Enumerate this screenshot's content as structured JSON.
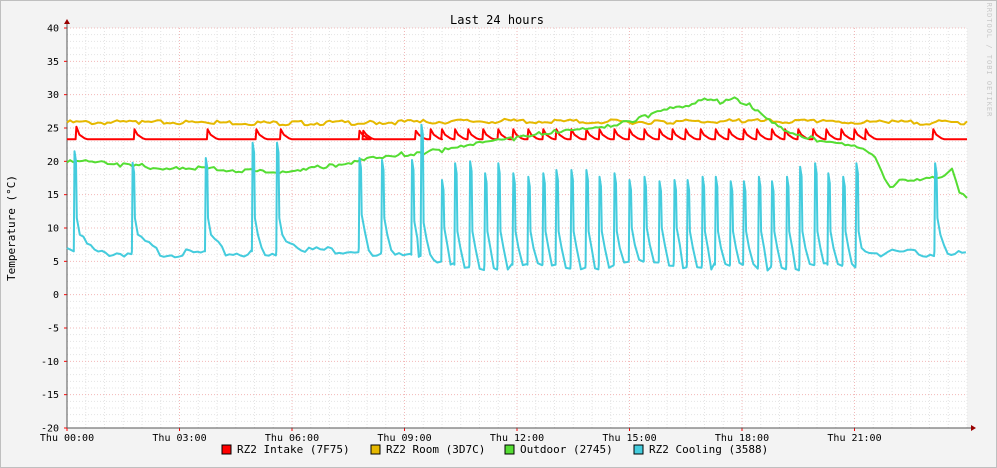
{
  "chart_data": {
    "type": "line",
    "title": "Last 24 hours",
    "ylabel": "Temperature (°C)",
    "watermark": "RRDTOOL / TOBI OETIKER",
    "ylim": [
      -20,
      40
    ],
    "y_ticks": [
      40,
      35,
      30,
      25,
      20,
      15,
      10,
      5,
      0,
      -5,
      -10,
      -15,
      -20
    ],
    "xlim": [
      0,
      24
    ],
    "x_ticks": [
      {
        "hour": 0,
        "label": "Thu 00:00"
      },
      {
        "hour": 3,
        "label": "Thu 03:00"
      },
      {
        "hour": 6,
        "label": "Thu 06:00"
      },
      {
        "hour": 9,
        "label": "Thu 09:00"
      },
      {
        "hour": 12,
        "label": "Thu 12:00"
      },
      {
        "hour": 15,
        "label": "Thu 15:00"
      },
      {
        "hour": 18,
        "label": "Thu 18:00"
      },
      {
        "hour": 21,
        "label": "Thu 21:00"
      }
    ],
    "grid": true,
    "legend_position": "bottom",
    "series": [
      {
        "name": "RZ2 Intake (7F75)",
        "color": "#ff0000",
        "baseline": 23.3,
        "spikes": [
          {
            "t": 0.25,
            "peak": 25.2
          },
          {
            "t": 1.8,
            "peak": 24.8
          },
          {
            "t": 3.75,
            "peak": 24.8
          },
          {
            "t": 5.05,
            "peak": 24.8
          },
          {
            "t": 5.7,
            "peak": 24.8
          },
          {
            "t": 7.8,
            "peak": 24.6
          },
          {
            "t": 7.9,
            "peak": 24.6
          },
          {
            "t": 9.3,
            "peak": 24.6
          },
          {
            "t": 9.7,
            "peak": 24.8
          },
          {
            "t": 10.0,
            "peak": 24.8
          },
          {
            "t": 10.35,
            "peak": 24.8
          },
          {
            "t": 10.7,
            "peak": 24.8
          },
          {
            "t": 11.1,
            "peak": 24.8
          },
          {
            "t": 11.5,
            "peak": 24.8
          },
          {
            "t": 11.9,
            "peak": 24.8
          },
          {
            "t": 12.3,
            "peak": 24.8
          },
          {
            "t": 12.7,
            "peak": 24.8
          },
          {
            "t": 13.05,
            "peak": 24.8
          },
          {
            "t": 13.45,
            "peak": 24.8
          },
          {
            "t": 13.85,
            "peak": 24.8
          },
          {
            "t": 14.2,
            "peak": 24.8
          },
          {
            "t": 14.6,
            "peak": 24.8
          },
          {
            "t": 15.0,
            "peak": 24.8
          },
          {
            "t": 15.4,
            "peak": 24.8
          },
          {
            "t": 15.8,
            "peak": 24.8
          },
          {
            "t": 16.15,
            "peak": 24.8
          },
          {
            "t": 16.5,
            "peak": 24.8
          },
          {
            "t": 16.9,
            "peak": 24.8
          },
          {
            "t": 17.3,
            "peak": 24.8
          },
          {
            "t": 17.65,
            "peak": 24.8
          },
          {
            "t": 18.05,
            "peak": 24.8
          },
          {
            "t": 18.4,
            "peak": 24.8
          },
          {
            "t": 18.8,
            "peak": 24.8
          },
          {
            "t": 19.15,
            "peak": 24.8
          },
          {
            "t": 19.5,
            "peak": 24.8
          },
          {
            "t": 19.9,
            "peak": 24.8
          },
          {
            "t": 20.25,
            "peak": 24.8
          },
          {
            "t": 20.65,
            "peak": 24.8
          },
          {
            "t": 21.0,
            "peak": 24.8
          },
          {
            "t": 21.3,
            "peak": 24.8
          },
          {
            "t": 23.1,
            "peak": 24.8
          }
        ]
      },
      {
        "name": "RZ2 Room (3D7C)",
        "color": "#e6b800",
        "points": [
          [
            0,
            26.0
          ],
          [
            2,
            26.0
          ],
          [
            4,
            26.0
          ],
          [
            6,
            25.9
          ],
          [
            8,
            26.0
          ],
          [
            9.5,
            26.1
          ],
          [
            11,
            26.2
          ],
          [
            12.5,
            26.2
          ],
          [
            14,
            26.1
          ],
          [
            16,
            26.1
          ],
          [
            18,
            26.2
          ],
          [
            20,
            26.1
          ],
          [
            22,
            26.0
          ],
          [
            24,
            26.0
          ]
        ]
      },
      {
        "name": "Outdoor (2745)",
        "color": "#55dd33",
        "points": [
          [
            0,
            20.0
          ],
          [
            0.5,
            20.1
          ],
          [
            1.0,
            19.8
          ],
          [
            1.5,
            19.6
          ],
          [
            1.75,
            19.4
          ],
          [
            2.0,
            19.5
          ],
          [
            2.3,
            19.2
          ],
          [
            3.0,
            19.3
          ],
          [
            4.0,
            19.0
          ],
          [
            4.5,
            18.8
          ],
          [
            5.0,
            18.9
          ],
          [
            5.3,
            18.6
          ],
          [
            5.5,
            18.2
          ],
          [
            6.0,
            18.5
          ],
          [
            6.3,
            18.8
          ],
          [
            6.6,
            19.2
          ],
          [
            7.0,
            19.4
          ],
          [
            7.5,
            20.0
          ],
          [
            8.0,
            20.8
          ],
          [
            8.5,
            21.0
          ],
          [
            9.0,
            21.3
          ],
          [
            9.5,
            21.5
          ],
          [
            10.0,
            21.8
          ],
          [
            10.5,
            22.2
          ],
          [
            11.0,
            22.8
          ],
          [
            11.5,
            23.3
          ],
          [
            12.0,
            23.7
          ],
          [
            12.5,
            24.2
          ],
          [
            13.0,
            24.7
          ],
          [
            13.5,
            25.2
          ],
          [
            14.0,
            25.3
          ],
          [
            14.5,
            25.6
          ],
          [
            15.0,
            26.2
          ],
          [
            15.5,
            27.1
          ],
          [
            16.0,
            27.9
          ],
          [
            16.5,
            28.2
          ],
          [
            17.0,
            29.4
          ],
          [
            17.5,
            29.0
          ],
          [
            17.8,
            29.6
          ],
          [
            18.2,
            28.7
          ],
          [
            18.5,
            27.6
          ],
          [
            18.8,
            26.2
          ],
          [
            19.2,
            24.8
          ],
          [
            19.6,
            23.9
          ],
          [
            20.0,
            23.4
          ],
          [
            20.5,
            22.7
          ],
          [
            21.0,
            22.3
          ],
          [
            21.3,
            21.7
          ],
          [
            21.55,
            20.5
          ],
          [
            21.8,
            17.5
          ],
          [
            21.95,
            16.3
          ],
          [
            22.2,
            17.5
          ],
          [
            22.5,
            17.4
          ],
          [
            23.0,
            17.8
          ],
          [
            23.4,
            18.1
          ],
          [
            23.6,
            19.1
          ],
          [
            23.8,
            15.8
          ],
          [
            24.0,
            14.5
          ]
        ]
      },
      {
        "name": "RZ2 Cooling (3588)",
        "color": "#44ccdd",
        "spikes": [
          {
            "t": 0.2,
            "base": 6.5,
            "peak": 21.5
          },
          {
            "t": 1.75,
            "base": 6.5,
            "peak": 19.8
          },
          {
            "t": 3.7,
            "base": 6.5,
            "peak": 20.5
          },
          {
            "t": 4.95,
            "base": 6.5,
            "peak": 22.8
          },
          {
            "t": 5.6,
            "base": 6.5,
            "peak": 22.8
          },
          {
            "t": 7.8,
            "base": 7.0,
            "peak": 20.5
          },
          {
            "t": 8.4,
            "base": 6.5,
            "peak": 20.2
          },
          {
            "t": 9.2,
            "base": 6.0,
            "peak": 20.2
          },
          {
            "t": 9.45,
            "base": 5.8,
            "peak": 25.5
          },
          {
            "t": 10.0,
            "base": 5.0,
            "peak": 17.2
          },
          {
            "t": 10.35,
            "base": 4.5,
            "peak": 19.7
          },
          {
            "t": 10.75,
            "base": 4.5,
            "peak": 20.0
          },
          {
            "t": 11.15,
            "base": 4.5,
            "peak": 18.2
          },
          {
            "t": 11.5,
            "base": 4.5,
            "peak": 19.7
          },
          {
            "t": 11.9,
            "base": 4.5,
            "peak": 18.2
          },
          {
            "t": 12.3,
            "base": 4.5,
            "peak": 17.7
          },
          {
            "t": 12.7,
            "base": 4.5,
            "peak": 18.2
          },
          {
            "t": 13.05,
            "base": 4.5,
            "peak": 18.7
          },
          {
            "t": 13.45,
            "base": 4.5,
            "peak": 18.7
          },
          {
            "t": 13.85,
            "base": 4.5,
            "peak": 18.7
          },
          {
            "t": 14.2,
            "base": 4.5,
            "peak": 17.7
          },
          {
            "t": 14.6,
            "base": 4.5,
            "peak": 18.2
          },
          {
            "t": 15.0,
            "base": 5.0,
            "peak": 17.2
          },
          {
            "t": 15.4,
            "base": 5.0,
            "peak": 17.7
          },
          {
            "t": 15.8,
            "base": 5.0,
            "peak": 17.0
          },
          {
            "t": 16.2,
            "base": 5.0,
            "peak": 17.2
          },
          {
            "t": 16.55,
            "base": 4.5,
            "peak": 17.2
          },
          {
            "t": 16.95,
            "base": 4.5,
            "peak": 17.7
          },
          {
            "t": 17.3,
            "base": 4.5,
            "peak": 17.7
          },
          {
            "t": 17.7,
            "base": 4.5,
            "peak": 17.0
          },
          {
            "t": 18.05,
            "base": 4.5,
            "peak": 17.0
          },
          {
            "t": 18.45,
            "base": 4.5,
            "peak": 17.7
          },
          {
            "t": 18.8,
            "base": 4.5,
            "peak": 17.0
          },
          {
            "t": 19.2,
            "base": 4.5,
            "peak": 17.7
          },
          {
            "t": 19.55,
            "base": 4.5,
            "peak": 19.2
          },
          {
            "t": 19.95,
            "base": 4.5,
            "peak": 19.7
          },
          {
            "t": 20.3,
            "base": 4.5,
            "peak": 18.2
          },
          {
            "t": 20.7,
            "base": 4.5,
            "peak": 17.7
          },
          {
            "t": 21.05,
            "base": 4.5,
            "peak": 19.7
          },
          {
            "t": 23.15,
            "base": 6.5,
            "peak": 19.7
          }
        ]
      }
    ]
  }
}
